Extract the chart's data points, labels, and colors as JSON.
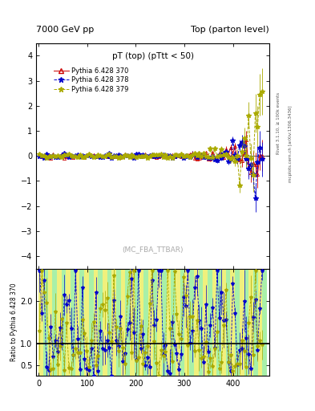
{
  "title_left": "7000 GeV pp",
  "title_right": "Top (parton level)",
  "plot_title": "pT (top) (pTtt < 50)",
  "watermark": "(MC_FBA_TTBAR)",
  "ylabel_ratio": "Ratio to Pythia 6.428 370",
  "right_text_1": "Rivet 3.1.10, ≥ 100k events",
  "right_text_2": "mcplots.cern.ch [arXiv:1306.3436]",
  "legend": [
    {
      "label": "Pythia 6.428 370",
      "color": "#cc0000"
    },
    {
      "label": "Pythia 6.428 378",
      "color": "#0000cc"
    },
    {
      "label": "Pythia 6.428 379",
      "color": "#aaaa00"
    }
  ],
  "main_ylim": [
    -4.5,
    4.5
  ],
  "main_yticks": [
    -4,
    -3,
    -2,
    -1,
    0,
    1,
    2,
    3,
    4
  ],
  "ratio_ylim": [
    0.25,
    2.75
  ],
  "ratio_yticks": [
    0.5,
    1,
    2
  ],
  "xlim": [
    -5,
    475
  ],
  "xticks": [
    0,
    100,
    200,
    300,
    400
  ],
  "background_color": "#ffffff",
  "ratio_bg_green": "#99ee99",
  "ratio_bg_yellow": "#eeee66"
}
